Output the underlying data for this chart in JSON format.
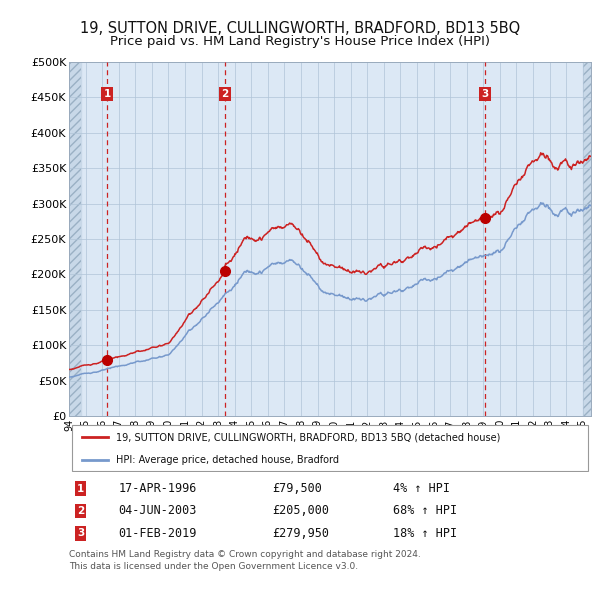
{
  "title": "19, SUTTON DRIVE, CULLINGWORTH, BRADFORD, BD13 5BQ",
  "subtitle": "Price paid vs. HM Land Registry's House Price Index (HPI)",
  "legend_line1": "19, SUTTON DRIVE, CULLINGWORTH, BRADFORD, BD13 5BQ (detached house)",
  "legend_line2": "HPI: Average price, detached house, Bradford",
  "footer1": "Contains HM Land Registry data © Crown copyright and database right 2024.",
  "footer2": "This data is licensed under the Open Government Licence v3.0.",
  "transactions": [
    {
      "num": 1,
      "date": "17-APR-1996",
      "price": 79500,
      "pct": "4%",
      "dir": "↑"
    },
    {
      "num": 2,
      "date": "04-JUN-2003",
      "price": 205000,
      "pct": "68%",
      "dir": "↑"
    },
    {
      "num": 3,
      "date": "01-FEB-2019",
      "price": 279950,
      "pct": "18%",
      "dir": "↑"
    }
  ],
  "sale_dates_decimal": [
    1996.29,
    2003.42,
    2019.08
  ],
  "sale_prices": [
    79500,
    205000,
    279950
  ],
  "ylim": [
    0,
    500000
  ],
  "yticks": [
    0,
    50000,
    100000,
    150000,
    200000,
    250000,
    300000,
    350000,
    400000,
    450000,
    500000
  ],
  "ytick_labels": [
    "£0",
    "£50K",
    "£100K",
    "£150K",
    "£200K",
    "£250K",
    "£300K",
    "£350K",
    "£400K",
    "£450K",
    "£500K"
  ],
  "xlim_start": 1994.0,
  "xlim_end": 2025.5,
  "hpi_color": "#7799cc",
  "price_color": "#cc2222",
  "dot_color": "#bb0000",
  "dashed_color": "#cc2222",
  "background_color": "#dce8f5",
  "hatch_color": "#c8d8e8",
  "grid_color": "#b0c4d8",
  "label_box_color": "#cc2222",
  "title_fontsize": 10.5,
  "subtitle_fontsize": 9.5
}
